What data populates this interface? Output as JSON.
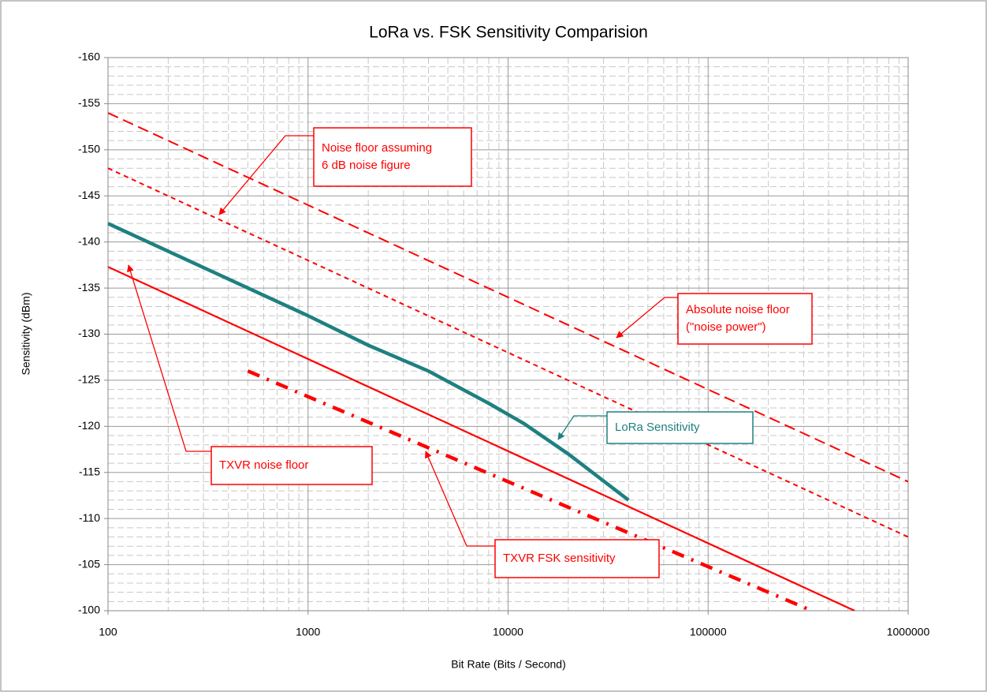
{
  "chart_data": {
    "type": "line",
    "title": "LoRa vs. FSK Sensitivity Comparision",
    "x_label": "Bit Rate (Bits / Second)",
    "y_label": "Sensitivity (dBm)",
    "log_x": true,
    "xlim": [
      100,
      1000000
    ],
    "xticks": [
      100,
      1000,
      10000,
      100000,
      1000000
    ],
    "minor_xticks": [
      200,
      300,
      400,
      500,
      600,
      700,
      800,
      900,
      2000,
      3000,
      4000,
      5000,
      6000,
      7000,
      8000,
      9000,
      20000,
      30000,
      40000,
      50000,
      60000,
      70000,
      80000,
      90000,
      200000,
      300000,
      400000,
      500000,
      600000,
      700000,
      800000,
      900000
    ],
    "ylim": [
      -100,
      -160
    ],
    "yticks": [
      -100,
      -105,
      -110,
      -115,
      -120,
      -125,
      -130,
      -135,
      -140,
      -145,
      -150,
      -155,
      -160
    ],
    "minor_yticks": [
      -101,
      -102,
      -103,
      -104,
      -106,
      -107,
      -108,
      -109,
      -111,
      -112,
      -113,
      -114,
      -116,
      -117,
      -118,
      -119,
      -121,
      -122,
      -123,
      -124,
      -126,
      -127,
      -128,
      -129,
      -131,
      -132,
      -133,
      -134,
      -136,
      -137,
      -138,
      -139,
      -141,
      -142,
      -143,
      -144,
      -146,
      -147,
      -148,
      -149,
      -151,
      -152,
      -153,
      -154,
      -156,
      -157,
      -158,
      -159
    ],
    "grid": true,
    "minor_grid": true,
    "series": [
      {
        "color": "#ff0000",
        "line_style": "long-dash",
        "x": [
          100,
          1000000
        ],
        "values": [
          -154,
          -114
        ]
      },
      {
        "color": "#ff0000",
        "line_style": "short-dash",
        "x": [
          100,
          1000000
        ],
        "values": [
          -148,
          -108
        ]
      },
      {
        "color": "#ff0000",
        "line_style": "solid",
        "x": [
          100,
          540000
        ],
        "values": [
          -137.3,
          -100
        ]
      },
      {
        "color": "#ff0000",
        "line_style": "thick-dash-dot",
        "x": [
          500,
          330000
        ],
        "values": [
          -126,
          -100
        ]
      },
      {
        "color": "#1f8080",
        "line_style": "thick",
        "x": [
          100,
          1000,
          2000,
          4000,
          8000,
          12000,
          20000,
          40000
        ],
        "values": [
          -142,
          -132,
          -128.8,
          -126,
          -122.5,
          -120.3,
          -117,
          -112
        ]
      }
    ],
    "annotations": [
      {
        "lines": [
          "Noise floor assuming",
          "6 dB noise figure"
        ],
        "color": "#ff0000"
      },
      {
        "lines": [
          "Absolute noise floor",
          "(\"noise power\")"
        ],
        "color": "#ff0000"
      },
      {
        "lines": [
          "LoRa Sensitivity"
        ],
        "color": "#1f8080"
      },
      {
        "lines": [
          "TXVR noise floor"
        ],
        "color": "#ff0000"
      },
      {
        "lines": [
          "TXVR FSK sensitivity"
        ],
        "color": "#ff0000"
      }
    ]
  }
}
